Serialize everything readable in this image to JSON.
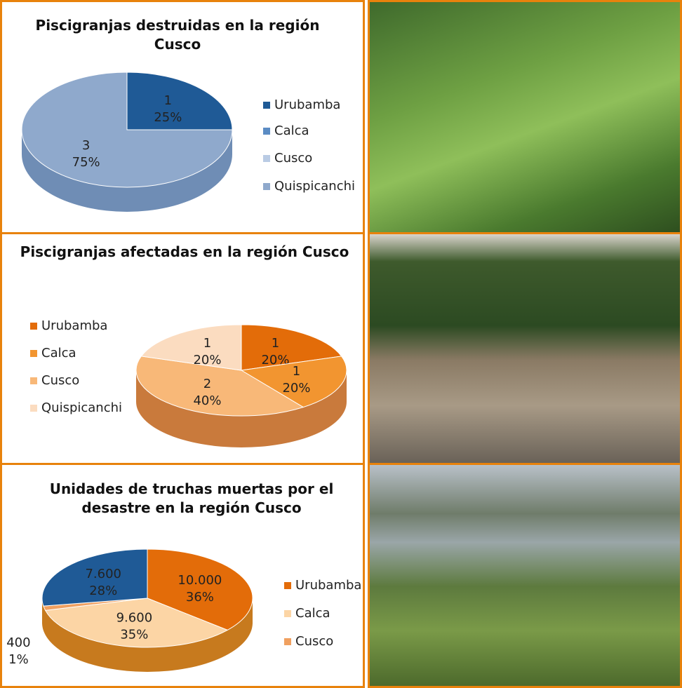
{
  "chart_data": [
    {
      "type": "pie",
      "title": "Piscigranjas destruidas en la región Cusco",
      "categories": [
        "Urubamba",
        "Calca",
        "Cusco",
        "Quispicanchi"
      ],
      "values": [
        1,
        0,
        0,
        3
      ],
      "percent_labels": [
        "25%",
        null,
        null,
        "75%"
      ],
      "colors": [
        "#1f5a96",
        "#5b8cc4",
        "#b9cbe4",
        "#8fa9cc"
      ]
    },
    {
      "type": "pie",
      "title": "Piscigranjas afectadas en la región Cusco",
      "categories": [
        "Urubamba",
        "Calca",
        "Cusco",
        "Quispicanchi"
      ],
      "values": [
        1,
        1,
        2,
        1
      ],
      "percent_labels": [
        "20%",
        "20%",
        "40%",
        "20%"
      ],
      "colors": [
        "#e36c09",
        "#f29530",
        "#f8b878",
        "#fbdcc0"
      ]
    },
    {
      "type": "pie",
      "title": "Unidades de truchas muertas por el desastre en la región Cusco",
      "categories": [
        "Urubamba",
        "Calca",
        "Cusco",
        null
      ],
      "values": [
        10000,
        9600,
        400,
        7600
      ],
      "value_labels": [
        "10.000",
        "9.600",
        "400",
        "7.600"
      ],
      "percent_labels": [
        "36%",
        "35%",
        "1%",
        "28%"
      ],
      "colors": [
        "#e36c09",
        "#fcd5a5",
        "#f0a060",
        "#1f5a96"
      ]
    }
  ]
}
